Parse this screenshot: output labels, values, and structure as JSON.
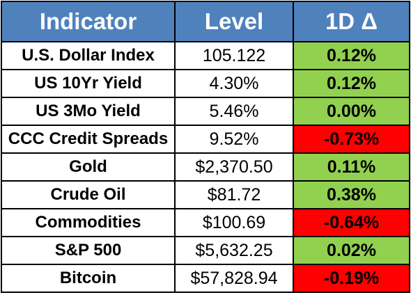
{
  "header": {
    "indicator": "Indicator",
    "level": "Level",
    "change": "1D Δ"
  },
  "colors": {
    "header_bg": "#4f81bd",
    "positive_bg": "#92d050",
    "negative_bg": "#ff0000"
  },
  "rows": [
    {
      "name": "U.S. Dollar Index",
      "level": "105.122",
      "change": "0.12%",
      "direction": "positive"
    },
    {
      "name": "US 10Yr Yield",
      "level": "4.30%",
      "change": "0.12%",
      "direction": "positive"
    },
    {
      "name": "US 3Mo Yield",
      "level": "5.46%",
      "change": "0.00%",
      "direction": "positive"
    },
    {
      "name": "CCC Credit Spreads",
      "level": "9.52%",
      "change": "-0.73%",
      "direction": "negative"
    },
    {
      "name": "Gold",
      "level": "$2,370.50",
      "change": "0.11%",
      "direction": "positive"
    },
    {
      "name": "Crude Oil",
      "level": "$81.72",
      "change": "0.38%",
      "direction": "positive"
    },
    {
      "name": "Commodities",
      "level": "$100.69",
      "change": "-0.64%",
      "direction": "negative"
    },
    {
      "name": "S&P 500",
      "level": "$5,632.25",
      "change": "0.02%",
      "direction": "positive"
    },
    {
      "name": "Bitcoin",
      "level": "$57,828.94",
      "change": "-0.19%",
      "direction": "negative"
    }
  ]
}
